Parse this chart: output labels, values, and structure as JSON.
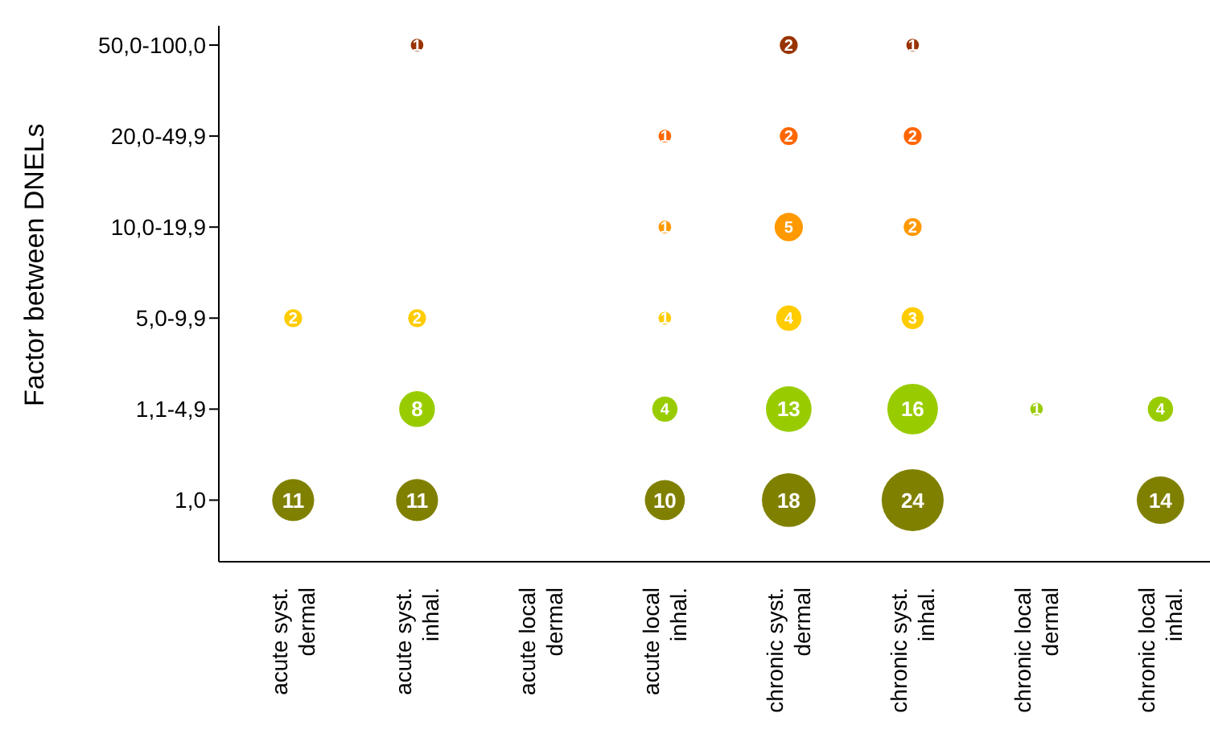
{
  "chart_data": {
    "type": "heatmap",
    "ylabel": "Factor between DNELs",
    "categories": [
      "acute syst. dermal",
      "acute syst. inhal.",
      "acute local dermal",
      "acute local inhal.",
      "chronic syst. dermal",
      "chronic syst. inhal.",
      "chronic local dermal",
      "chronic local inhal."
    ],
    "y_categories": [
      "50,0-100,0",
      "20,0-49,9",
      "10,0-19,9",
      "5,0-9,9",
      "1,1-4,9",
      "1,0"
    ],
    "colors": [
      "#993300",
      "#ff6600",
      "#ff9900",
      "#ffcc00",
      "#99cc00",
      "#808000"
    ],
    "cells": [
      [
        null,
        1,
        null,
        null,
        2,
        1,
        null,
        null
      ],
      [
        null,
        null,
        null,
        1,
        2,
        2,
        null,
        null
      ],
      [
        null,
        null,
        null,
        1,
        5,
        2,
        null,
        null
      ],
      [
        2,
        2,
        null,
        1,
        4,
        3,
        null,
        null
      ],
      [
        null,
        8,
        null,
        4,
        13,
        16,
        1,
        4
      ],
      [
        11,
        11,
        null,
        10,
        18,
        24,
        null,
        14
      ]
    ],
    "data_labels": true
  }
}
